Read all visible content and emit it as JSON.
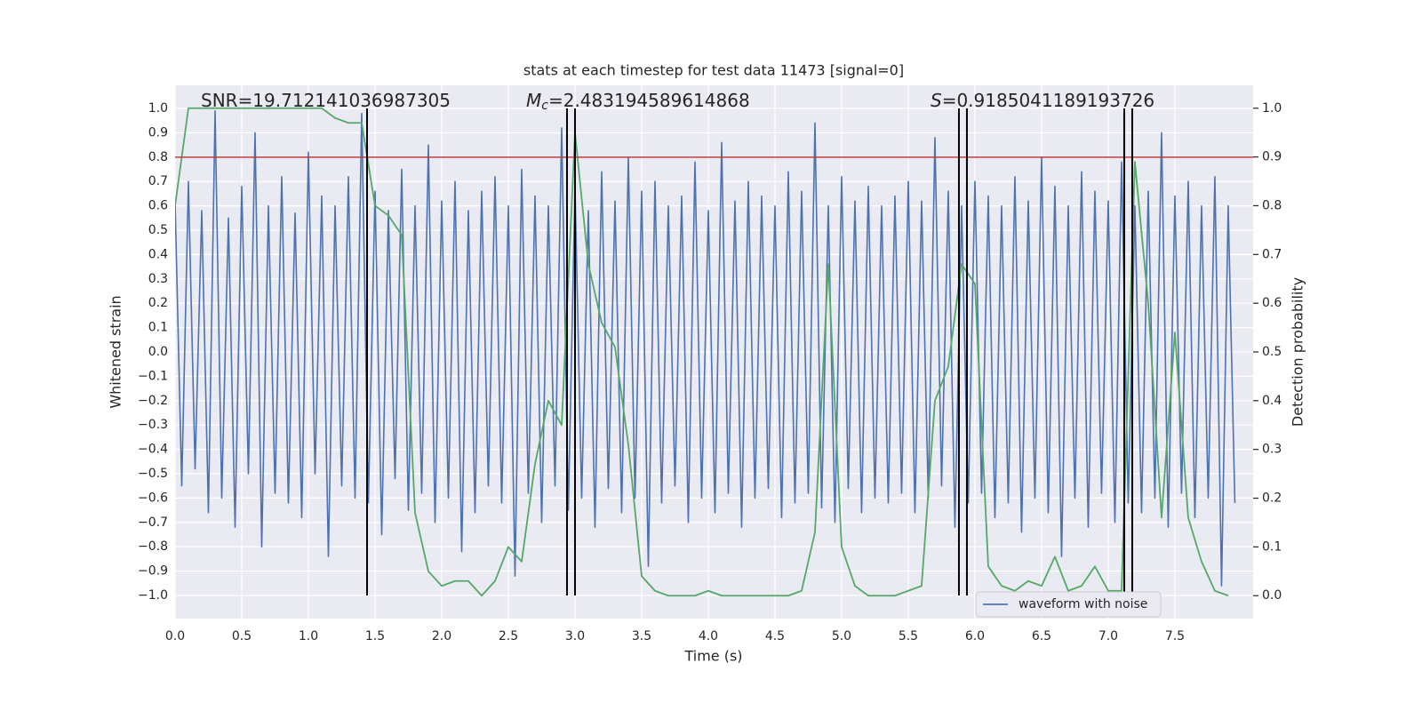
{
  "chart_data": {
    "type": "line",
    "title": "stats at each timestep for test data 11473 [signal=0]",
    "x_label": "Time (s)",
    "y_label": "Whitened strain",
    "y2_label": "Detection probability",
    "background": "#eaeaf2",
    "grid": true,
    "legend": "lower right",
    "xlim": [
      0,
      8.087
    ],
    "ylim": [
      -1.095,
      1.095
    ],
    "y2lim": [
      -0.047,
      1.047
    ],
    "xticks": [
      {
        "value": 0,
        "label": "0.0"
      },
      0.5,
      {
        "value": 1,
        "label": "1.0"
      },
      1.5,
      {
        "value": 2,
        "label": "2.0"
      },
      2.5,
      {
        "value": 3,
        "label": "3.0"
      },
      3.5,
      {
        "value": 4,
        "label": "4.0"
      },
      4.5,
      {
        "value": 5,
        "label": "5.0"
      },
      5.5,
      {
        "value": 6,
        "label": "6.0"
      },
      6.5,
      {
        "value": 7,
        "label": "7.0"
      },
      7.5
    ],
    "yticks": [
      {
        "value": -1,
        "label": "−1.0"
      },
      {
        "value": -0.9,
        "label": "−0.9"
      },
      {
        "value": -0.8,
        "label": "−0.8"
      },
      {
        "value": -0.7,
        "label": "−0.7"
      },
      {
        "value": -0.6,
        "label": "−0.6"
      },
      {
        "value": -0.5,
        "label": "−0.5"
      },
      {
        "value": -0.4,
        "label": "−0.4"
      },
      {
        "value": -0.3,
        "label": "−0.3"
      },
      {
        "value": -0.2,
        "label": "−0.2"
      },
      {
        "value": -0.1,
        "label": "−0.1"
      },
      {
        "value": 0,
        "label": "0.0"
      },
      0.1,
      0.2,
      0.3,
      0.4,
      0.5,
      0.6,
      0.7,
      0.8,
      0.9,
      {
        "value": 1,
        "label": "1.0"
      }
    ],
    "y2ticks": [
      {
        "value": 0,
        "label": "0.0"
      },
      0.1,
      0.2,
      0.3,
      0.4,
      0.5,
      0.6,
      0.7,
      0.8,
      0.9,
      {
        "value": 1,
        "label": "1.0"
      }
    ],
    "annotations": [
      {
        "text": "SNR=19.712141036987305"
      },
      {
        "symbol": "M",
        "sub": "c",
        "text": "=2.483194589614868"
      },
      {
        "symbol": "S",
        "text": "=0.9185041189193726"
      }
    ],
    "hline": 0.8,
    "hline_color": "#c03d3e",
    "vlines": [
      1.44,
      2.94,
      3.0,
      5.88,
      5.94,
      7.12,
      7.18
    ],
    "vline_range": [
      -1,
      1
    ],
    "vline_color": "#000000",
    "series": [
      {
        "name": "waveform with noise",
        "color": "#4c72b0",
        "x": [
          0,
          0.05,
          0.1,
          0.15,
          0.2,
          0.25,
          0.3,
          0.35,
          0.4,
          0.45,
          0.5,
          0.55,
          0.6,
          0.65,
          0.7,
          0.75,
          0.8,
          0.85,
          0.9,
          0.95,
          1,
          1.05,
          1.1,
          1.15,
          1.2,
          1.25,
          1.3,
          1.35,
          1.4,
          1.45,
          1.5,
          1.55,
          1.6,
          1.65,
          1.7,
          1.75,
          1.8,
          1.85,
          1.9,
          1.95,
          2,
          2.05,
          2.1,
          2.15,
          2.2,
          2.25,
          2.3,
          2.35,
          2.4,
          2.45,
          2.5,
          2.55,
          2.6,
          2.65,
          2.7,
          2.75,
          2.8,
          2.85,
          2.9,
          2.95,
          3,
          3.05,
          3.1,
          3.15,
          3.2,
          3.25,
          3.3,
          3.35,
          3.4,
          3.45,
          3.5,
          3.55,
          3.6,
          3.65,
          3.7,
          3.75,
          3.8,
          3.85,
          3.9,
          3.95,
          4,
          4.05,
          4.1,
          4.15,
          4.2,
          4.25,
          4.3,
          4.35,
          4.4,
          4.45,
          4.5,
          4.55,
          4.6,
          4.65,
          4.7,
          4.75,
          4.8,
          4.85,
          4.9,
          4.95,
          5,
          5.05,
          5.1,
          5.15,
          5.2,
          5.25,
          5.3,
          5.35,
          5.4,
          5.45,
          5.5,
          5.55,
          5.6,
          5.65,
          5.7,
          5.75,
          5.8,
          5.85,
          5.9,
          5.95,
          6,
          6.05,
          6.1,
          6.15,
          6.2,
          6.25,
          6.3,
          6.35,
          6.4,
          6.45,
          6.5,
          6.55,
          6.6,
          6.65,
          6.7,
          6.75,
          6.8,
          6.85,
          6.9,
          6.95,
          7,
          7.05,
          7.1,
          7.15,
          7.2,
          7.25,
          7.3,
          7.35,
          7.4,
          7.45,
          7.5,
          7.55,
          7.6,
          7.65,
          7.7,
          7.75,
          7.8,
          7.85,
          7.9,
          7.95
        ],
        "values": [
          0.62,
          -0.55,
          0.7,
          -0.48,
          0.58,
          -0.66,
          0.99,
          -0.6,
          0.55,
          -0.72,
          0.68,
          -0.5,
          0.9,
          -0.8,
          0.6,
          -0.58,
          0.72,
          -0.62,
          0.57,
          -0.68,
          0.82,
          -0.5,
          0.64,
          -0.84,
          0.6,
          -0.55,
          0.72,
          -0.6,
          0.98,
          -0.62,
          0.66,
          -0.75,
          0.58,
          -0.52,
          0.75,
          -0.65,
          0.6,
          -0.58,
          0.85,
          -0.7,
          0.62,
          -0.6,
          0.7,
          -0.82,
          0.58,
          -0.66,
          0.66,
          -0.55,
          0.72,
          -0.62,
          0.6,
          -0.92,
          0.75,
          -0.58,
          0.64,
          -0.7,
          0.6,
          -0.55,
          0.92,
          -0.65,
          0.68,
          -0.6,
          0.58,
          -0.72,
          0.74,
          -0.56,
          0.62,
          -0.66,
          0.8,
          -0.6,
          0.66,
          -0.88,
          0.7,
          -0.62,
          0.6,
          -0.55,
          0.64,
          -0.7,
          0.78,
          -0.6,
          0.58,
          -0.66,
          0.86,
          -0.58,
          0.62,
          -0.72,
          0.7,
          -0.6,
          0.64,
          -0.56,
          0.6,
          -0.68,
          0.74,
          -0.62,
          0.66,
          -0.58,
          0.94,
          -0.64,
          0.6,
          -0.7,
          0.72,
          -0.56,
          0.62,
          -0.66,
          0.68,
          -0.6,
          0.6,
          -0.62,
          0.64,
          -0.58,
          0.7,
          -0.66,
          0.62,
          -0.6,
          0.88,
          -0.55,
          0.66,
          -0.72,
          0.6,
          -0.62,
          0.7,
          -0.58,
          0.64,
          -0.68,
          0.6,
          -0.62,
          0.72,
          -0.74,
          0.62,
          -0.6,
          0.8,
          -0.66,
          0.68,
          -0.84,
          0.6,
          -0.6,
          0.74,
          -0.72,
          0.66,
          -0.58,
          0.62,
          -0.7,
          0.78,
          -0.62,
          0.6,
          -0.66,
          0.66,
          -0.6,
          0.9,
          -0.72,
          0.64,
          -0.58,
          0.7,
          -0.68,
          0.6,
          -0.6,
          0.72,
          -0.96,
          0.6,
          -0.62
        ]
      },
      {
        "color": "#55a868",
        "axis": "y2",
        "x": [
          0,
          0.1,
          0.2,
          0.3,
          0.4,
          0.5,
          0.6,
          0.7,
          0.8,
          0.9,
          1,
          1.1,
          1.2,
          1.3,
          1.4,
          1.5,
          1.6,
          1.7,
          1.8,
          1.9,
          2,
          2.1,
          2.2,
          2.3,
          2.4,
          2.5,
          2.6,
          2.7,
          2.8,
          2.9,
          3,
          3.1,
          3.2,
          3.3,
          3.4,
          3.5,
          3.6,
          3.7,
          3.8,
          3.9,
          4,
          4.1,
          4.2,
          4.3,
          4.4,
          4.5,
          4.6,
          4.7,
          4.8,
          4.9,
          5,
          5.1,
          5.2,
          5.3,
          5.4,
          5.5,
          5.6,
          5.7,
          5.8,
          5.9,
          6,
          6.1,
          6.2,
          6.3,
          6.4,
          6.5,
          6.6,
          6.7,
          6.8,
          6.9,
          7,
          7.1,
          7.2,
          7.3,
          7.4,
          7.5,
          7.6,
          7.7,
          7.8,
          7.9
        ],
        "values": [
          0.8,
          1,
          1,
          1,
          1,
          1,
          1,
          1,
          1,
          1,
          1,
          1,
          0.98,
          0.97,
          0.97,
          0.8,
          0.78,
          0.74,
          0.17,
          0.05,
          0.02,
          0.03,
          0.03,
          0,
          0.03,
          0.1,
          0.07,
          0.27,
          0.4,
          0.35,
          0.95,
          0.68,
          0.56,
          0.51,
          0.31,
          0.04,
          0.01,
          0,
          0,
          0,
          0.01,
          0,
          0,
          0,
          0,
          0,
          0,
          0.01,
          0.13,
          0.68,
          0.1,
          0.02,
          0,
          0,
          0,
          0.01,
          0.02,
          0.4,
          0.47,
          0.68,
          0.64,
          0.06,
          0.02,
          0.01,
          0.03,
          0.02,
          0.08,
          0.01,
          0.02,
          0.06,
          0.01,
          0.01,
          0.89,
          0.6,
          0.16,
          0.54,
          0.16,
          0.07,
          0.01,
          0
        ]
      }
    ]
  }
}
